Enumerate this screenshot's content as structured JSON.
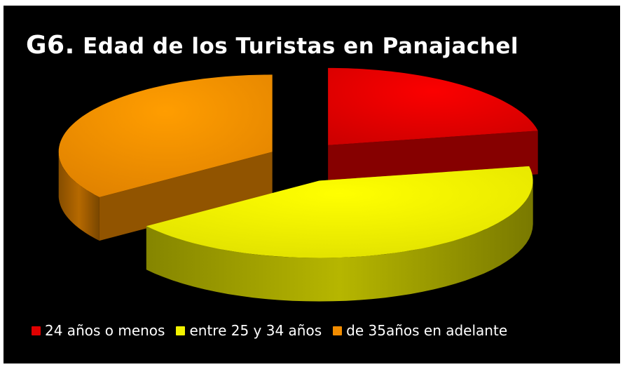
{
  "title": {
    "prefix": "G6.",
    "text": "Edad de los Turistas en Panajachel"
  },
  "chart_data": {
    "type": "pie",
    "style": "3d-exploded",
    "categories": [
      "24 años o menos",
      "entre 25 y 34 años",
      "de 35años en adelante"
    ],
    "values": [
      22,
      43,
      35
    ],
    "colors": [
      "#e00000",
      "#f2f200",
      "#f28c00"
    ],
    "legend_position": "bottom"
  },
  "colors": {
    "background": "#000000",
    "text": "#ffffff"
  }
}
